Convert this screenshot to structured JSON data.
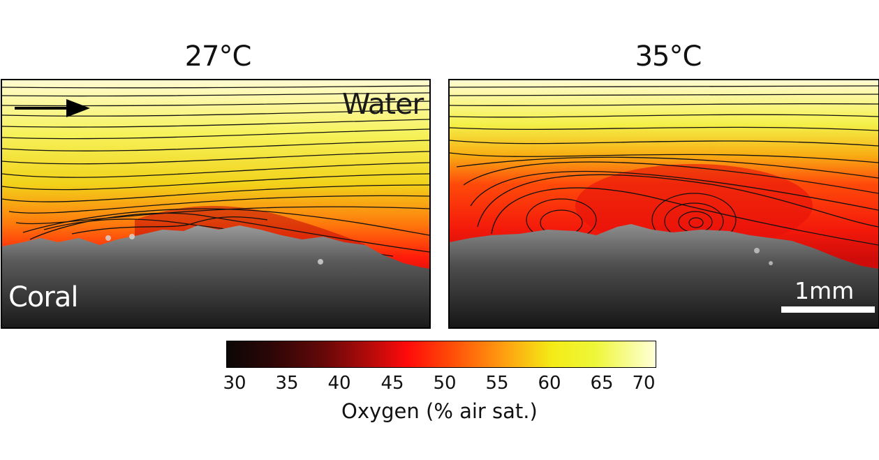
{
  "panels": [
    {
      "title": "27°C",
      "water_label": "Water",
      "coral_label": "Coral"
    },
    {
      "title": "35°C",
      "scale_label": "1mm"
    }
  ],
  "colorbar": {
    "ticks": [
      "30",
      "35",
      "40",
      "45",
      "50",
      "55",
      "60",
      "65",
      "70"
    ],
    "label": "Oxygen (% air sat.)",
    "colors": [
      "#0c0606",
      "#620808",
      "#ff0a0a",
      "#ff9a10",
      "#f4ec16",
      "#ffffd8"
    ]
  }
}
